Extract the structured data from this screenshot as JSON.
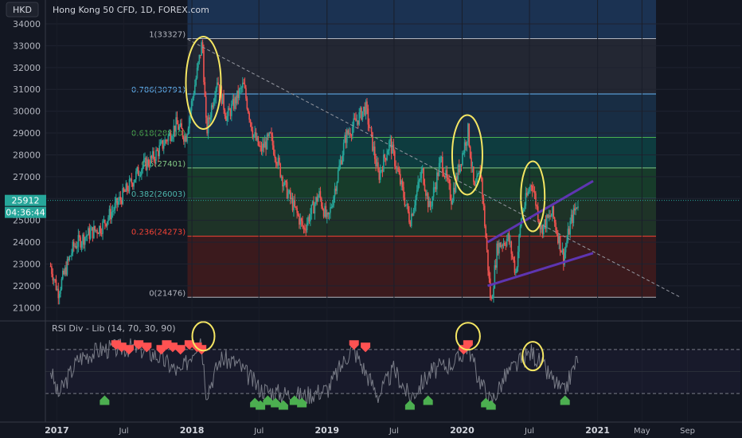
{
  "header": {
    "currency": "HKD",
    "title": "Hong Kong 50 CFD, 1D, FOREX.com"
  },
  "rsi_label": "RSI Div - Lib (14, 70, 30, 90)",
  "price_badge": {
    "price": "25912",
    "countdown": "04:36:44"
  },
  "chart_data": {
    "type": "candlestick",
    "title": "Hong Kong 50 CFD, 1D, FOREX.com",
    "y_ticks": [
      21000,
      22000,
      23000,
      24000,
      25000,
      26000,
      27000,
      28000,
      29000,
      30000,
      31000,
      32000,
      33000,
      34000
    ],
    "ylim": [
      20500,
      35000
    ],
    "x_labels": [
      "2017",
      "Jul",
      "2018",
      "Jul",
      "2019",
      "Jul",
      "2020",
      "Jul",
      "2021",
      "May",
      "Sep"
    ],
    "x_label_dates": [
      "2017-01-01",
      "2017-07-01",
      "2018-01-01",
      "2018-07-01",
      "2019-01-01",
      "2019-07-01",
      "2020-01-01",
      "2020-07-01",
      "2021-01-01",
      "2021-05-01",
      "2021-09-01"
    ],
    "bold_labels": [
      "2017",
      "2018",
      "2019",
      "2020",
      "2021"
    ],
    "fib_levels": [
      {
        "ratio": "1",
        "value": 33327,
        "label": "1(33327)",
        "color": "#b2b5be"
      },
      {
        "ratio": "0.786",
        "value": 30791,
        "label": "0.786(30791)",
        "color": "#64b5f6"
      },
      {
        "ratio": "0.618",
        "value": 28800,
        "label": "0.618(28800)",
        "color": "#4caf50"
      },
      {
        "ratio": "0.5",
        "value": 27401,
        "label": "0.5(27401)",
        "color": "#81c784"
      },
      {
        "ratio": "0.382",
        "value": 26003,
        "label": "0.382(26003)",
        "color": "#4db6ac"
      },
      {
        "ratio": "0.236",
        "value": 24273,
        "label": "0.236(24273)",
        "color": "#f44336"
      },
      {
        "ratio": "0",
        "value": 21476,
        "label": "0(21476)",
        "color": "#b2b5be"
      }
    ],
    "price_path": [
      [
        "2016-12-15",
        22900
      ],
      [
        "2017-01-04",
        21700
      ],
      [
        "2017-02-15",
        23800
      ],
      [
        "2017-03-20",
        24300
      ],
      [
        "2017-05-01",
        24700
      ],
      [
        "2017-06-15",
        25800
      ],
      [
        "2017-07-20",
        26700
      ],
      [
        "2017-08-15",
        27400
      ],
      [
        "2017-09-15",
        27800
      ],
      [
        "2017-10-20",
        28600
      ],
      [
        "2017-11-20",
        29400
      ],
      [
        "2017-12-15",
        28800
      ],
      [
        "2018-01-15",
        31800
      ],
      [
        "2018-01-29",
        33200
      ],
      [
        "2018-02-09",
        29000
      ],
      [
        "2018-03-10",
        31500
      ],
      [
        "2018-04-05",
        29700
      ],
      [
        "2018-05-20",
        31200
      ],
      [
        "2018-06-15",
        29000
      ],
      [
        "2018-07-05",
        28200
      ],
      [
        "2018-08-01",
        28800
      ],
      [
        "2018-09-10",
        26500
      ],
      [
        "2018-10-30",
        24600
      ],
      [
        "2018-12-10",
        26200
      ],
      [
        "2019-01-03",
        24900
      ],
      [
        "2019-02-20",
        28800
      ],
      [
        "2019-04-15",
        30200
      ],
      [
        "2019-05-20",
        27000
      ],
      [
        "2019-06-20",
        28600
      ],
      [
        "2019-08-13",
        25000
      ],
      [
        "2019-09-15",
        27300
      ],
      [
        "2019-10-05",
        25500
      ],
      [
        "2019-11-05",
        27800
      ],
      [
        "2019-12-03",
        26000
      ],
      [
        "2020-01-17",
        29100
      ],
      [
        "2020-02-03",
        26300
      ],
      [
        "2020-02-20",
        27300
      ],
      [
        "2020-03-19",
        21100
      ],
      [
        "2020-04-05",
        23800
      ],
      [
        "2020-05-05",
        24200
      ],
      [
        "2020-05-25",
        22600
      ],
      [
        "2020-06-10",
        25300
      ],
      [
        "2020-07-07",
        26800
      ],
      [
        "2020-08-01",
        24600
      ],
      [
        "2020-09-01",
        25300
      ],
      [
        "2020-10-01",
        23300
      ],
      [
        "2020-10-20",
        24900
      ],
      [
        "2020-11-10",
        25912
      ]
    ],
    "rsi_path": [
      [
        "2016-12-15",
        52
      ],
      [
        "2017-01-04",
        28
      ],
      [
        "2017-03-01",
        62
      ],
      [
        "2017-05-01",
        70
      ],
      [
        "2017-08-01",
        72
      ],
      [
        "2017-10-01",
        64
      ],
      [
        "2017-12-01",
        48
      ],
      [
        "2018-01-25",
        82
      ],
      [
        "2018-02-09",
        30
      ],
      [
        "2018-03-20",
        62
      ],
      [
        "2018-05-01",
        58
      ],
      [
        "2018-07-05",
        34
      ],
      [
        "2018-09-01",
        30
      ],
      [
        "2018-10-30",
        28
      ],
      [
        "2019-01-03",
        34
      ],
      [
        "2019-03-10",
        72
      ],
      [
        "2019-05-20",
        28
      ],
      [
        "2019-07-01",
        52
      ],
      [
        "2019-08-13",
        26
      ],
      [
        "2019-10-10",
        50
      ],
      [
        "2019-12-20",
        60
      ],
      [
        "2020-01-17",
        74
      ],
      [
        "2020-02-10",
        48
      ],
      [
        "2020-03-19",
        22
      ],
      [
        "2020-05-01",
        48
      ],
      [
        "2020-07-07",
        68
      ],
      [
        "2020-08-20",
        48
      ],
      [
        "2020-10-01",
        30
      ],
      [
        "2020-11-10",
        64
      ]
    ],
    "rsi_levels": [
      70,
      50,
      30
    ],
    "bearish_markers": [
      "2017-06-10",
      "2017-06-25",
      "2017-07-15",
      "2017-08-10",
      "2017-09-01",
      "2017-10-10",
      "2017-10-25",
      "2017-11-10",
      "2017-12-01",
      "2017-12-25",
      "2018-01-15",
      "2018-01-27",
      "2019-03-15",
      "2019-04-15",
      "2020-01-05",
      "2020-01-17"
    ],
    "bullish_markers": [
      "2017-05-10",
      "2018-06-20",
      "2018-07-05",
      "2018-07-25",
      "2018-08-15",
      "2018-09-05",
      "2018-10-05",
      "2018-10-25",
      "2019-08-13",
      "2019-10-01",
      "2020-03-05",
      "2020-03-19",
      "2020-10-05"
    ]
  },
  "overlays": {
    "dashed_trend": [
      [
        "2017-12-20",
        33300
      ],
      [
        "2021-08-10",
        21500
      ]
    ],
    "upper_channel": [
      [
        "2020-03-10",
        24000
      ],
      [
        "2020-12-20",
        26800
      ]
    ],
    "lower_channel": [
      [
        "2020-03-10",
        22000
      ],
      [
        "2020-12-20",
        23500
      ]
    ]
  }
}
